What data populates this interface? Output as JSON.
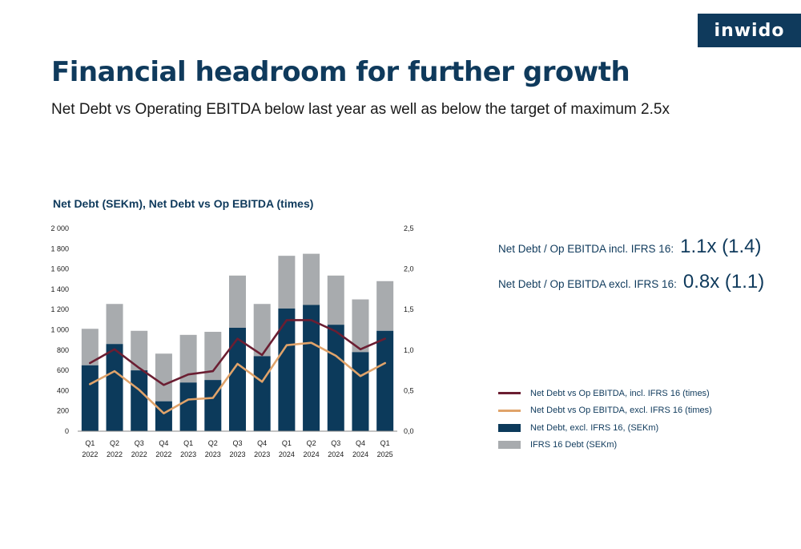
{
  "brand": {
    "logo_text": "inwido"
  },
  "header": {
    "title": "Financial headroom for further growth",
    "subtitle": "Net Debt vs Operating EBITDA below last year as well as below the target of maximum 2.5x"
  },
  "kpis": [
    {
      "label": "Net Debt / Op EBITDA incl. IFRS 16:",
      "value": "1.1x (1.4)"
    },
    {
      "label": "Net Debt / Op EBITDA excl. IFRS 16:",
      "value": "0.8x (1.1)"
    }
  ],
  "legend": [
    {
      "label": "Net Debt vs Op EBITDA, incl. IFRS 16 (times)",
      "kind": "line",
      "color": "#6b1e32"
    },
    {
      "label": "Net Debt vs Op EBITDA, excl. IFRS 16 (times)",
      "kind": "line",
      "color": "#e0a36a"
    },
    {
      "label": "Net Debt, excl. IFRS 16, (SEKm)",
      "kind": "box",
      "color": "#0c3a5b"
    },
    {
      "label": "IFRS 16 Debt (SEKm)",
      "kind": "box",
      "color": "#a8abae"
    }
  ],
  "colors": {
    "navy": "#0c3a5b",
    "grey": "#a8abae",
    "maroon": "#6b1e32",
    "tan": "#e0a36a",
    "brand": "#0f3a5c"
  },
  "chart_data": {
    "type": "bar",
    "title": "Net Debt (SEKm), Net Debt vs Op EBITDA (times)",
    "stacked": true,
    "categories": [
      [
        "Q1",
        "2022"
      ],
      [
        "Q2",
        "2022"
      ],
      [
        "Q3",
        "2022"
      ],
      [
        "Q4",
        "2022"
      ],
      [
        "Q1",
        "2023"
      ],
      [
        "Q2",
        "2023"
      ],
      [
        "Q3",
        "2023"
      ],
      [
        "Q4",
        "2023"
      ],
      [
        "Q1",
        "2024"
      ],
      [
        "Q2",
        "2024"
      ],
      [
        "Q3",
        "2024"
      ],
      [
        "Q4",
        "2024"
      ],
      [
        "Q1",
        "2025"
      ]
    ],
    "series": [
      {
        "name": "Net Debt, excl. IFRS 16, (SEKm)",
        "axis": "left",
        "type": "bar",
        "values": [
          650,
          860,
          600,
          295,
          480,
          505,
          1020,
          740,
          1210,
          1245,
          1050,
          780,
          990
        ]
      },
      {
        "name": "IFRS 16 Debt (SEKm)",
        "axis": "left",
        "type": "bar",
        "values": [
          360,
          395,
          390,
          470,
          470,
          475,
          515,
          515,
          520,
          505,
          485,
          520,
          490
        ]
      },
      {
        "name": "Net Debt vs Op EBITDA, incl. IFRS 16 (times)",
        "axis": "right",
        "type": "line",
        "values": [
          0.84,
          1.01,
          0.78,
          0.57,
          0.7,
          0.74,
          1.14,
          0.94,
          1.37,
          1.37,
          1.23,
          1.01,
          1.14
        ]
      },
      {
        "name": "Net Debt vs Op EBITDA, excl. IFRS 16 (times)",
        "axis": "right",
        "type": "line",
        "values": [
          0.58,
          0.74,
          0.51,
          0.22,
          0.39,
          0.41,
          0.83,
          0.61,
          1.06,
          1.09,
          0.93,
          0.68,
          0.84
        ]
      }
    ],
    "y_left": {
      "min": 0,
      "max": 2000,
      "ticks": [
        "0",
        "200",
        "400",
        "600",
        "800",
        "1 000",
        "1 200",
        "1 400",
        "1 600",
        "1 800",
        "2 000"
      ]
    },
    "y_right": {
      "min": 0,
      "max": 2.5,
      "ticks": [
        "0,0",
        "0,5",
        "1,0",
        "1,5",
        "2,0",
        "2,5"
      ]
    },
    "grid": false,
    "legend_position": "right"
  }
}
